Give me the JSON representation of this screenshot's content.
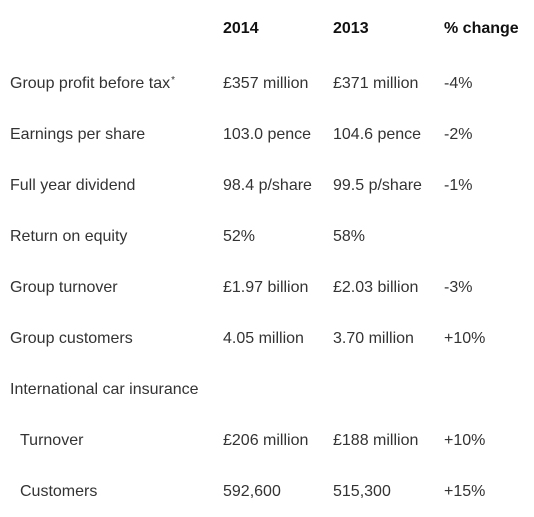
{
  "table": {
    "headers": {
      "label": "",
      "col_2014": "2014",
      "col_2013": "2013",
      "col_change": "% change"
    },
    "rows": [
      {
        "label": "Group profit before tax",
        "note": "*",
        "v2014": "£357 million",
        "v2013": "£371 million",
        "change": "-4%",
        "indent": false
      },
      {
        "label": "Earnings per share",
        "note": "",
        "v2014": "103.0 pence",
        "v2013": "104.6 pence",
        "change": "-2%",
        "indent": false
      },
      {
        "label": "Full year dividend",
        "note": "",
        "v2014": "98.4 p/share",
        "v2013": "99.5 p/share",
        "change": "-1%",
        "indent": false
      },
      {
        "label": "Return on equity",
        "note": "",
        "v2014": "52%",
        "v2013": "58%",
        "change": "",
        "indent": false
      },
      {
        "label": "Group turnover",
        "note": "",
        "v2014": "£1.97 billion",
        "v2013": "£2.03 billion",
        "change": "-3%",
        "indent": false
      },
      {
        "label": "Group customers",
        "note": "",
        "v2014": "4.05 million",
        "v2013": "3.70 million",
        "change": "+10%",
        "indent": false
      },
      {
        "label": "International car insurance",
        "note": "",
        "v2014": "",
        "v2013": "",
        "change": "",
        "indent": false
      },
      {
        "label": "Turnover",
        "note": "",
        "v2014": "£206 million",
        "v2013": "£188 million",
        "change": "+10%",
        "indent": true
      },
      {
        "label": "Customers",
        "note": "",
        "v2014": "592,600",
        "v2013": "515,300",
        "change": "+15%",
        "indent": true
      }
    ]
  }
}
